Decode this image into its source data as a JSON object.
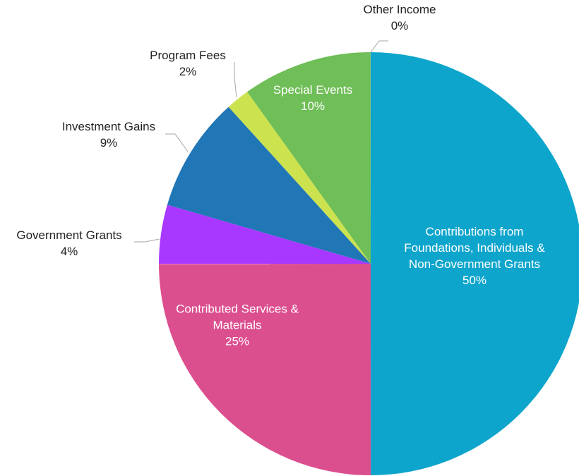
{
  "chart_data": {
    "type": "pie",
    "title": "",
    "start_angle_deg": 0,
    "direction": "clockwise",
    "slices": [
      {
        "label": "Contributions from Foundations, Individuals & Non-Government Grants",
        "lines": [
          "Contributions from",
          "Foundations, Individuals &",
          "Non-Government Grants"
        ],
        "value": 50,
        "value_label": "50%",
        "color": "#0ea5cc",
        "label_position": "inside"
      },
      {
        "label": "Contributed Services & Materials",
        "lines": [
          "Contributed Services &",
          "Materials"
        ],
        "value": 25,
        "value_label": "25%",
        "color": "#dc4f8f",
        "label_position": "inside"
      },
      {
        "label": "Government Grants",
        "lines": [
          "Government Grants"
        ],
        "value": 4.5,
        "value_label": "4%",
        "color": "#a838ff",
        "label_position": "outside"
      },
      {
        "label": "Investment Gains",
        "lines": [
          "Investment Gains"
        ],
        "value": 8.8,
        "value_label": "9%",
        "color": "#2176b6",
        "label_position": "outside"
      },
      {
        "label": "Program Fees",
        "lines": [
          "Program Fees"
        ],
        "value": 1.8,
        "value_label": "2%",
        "color": "#cde24f",
        "label_position": "outside"
      },
      {
        "label": "Special Events",
        "lines": [
          "Special Events"
        ],
        "value": 9.9,
        "value_label": "10%",
        "color": "#6fbe57",
        "label_position": "inside"
      },
      {
        "label": "Other Income",
        "lines": [
          "Other Income"
        ],
        "value": 0.01,
        "value_label": "0%",
        "color": "#9e9e9e",
        "label_position": "outside"
      }
    ]
  }
}
